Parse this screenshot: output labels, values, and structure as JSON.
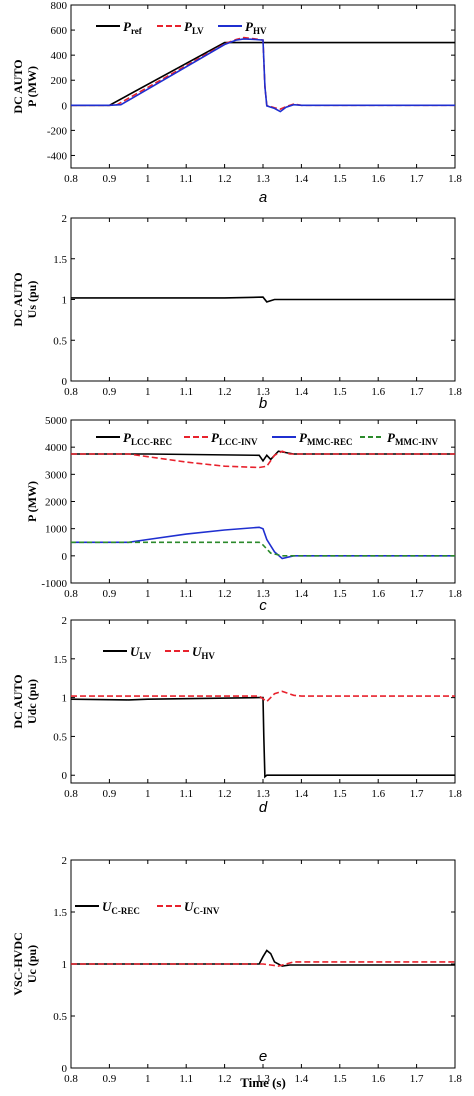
{
  "colors": {
    "black": "#000000",
    "red": "#e8222d",
    "blue": "#1f2fd0",
    "green": "#2b8a2b"
  },
  "chart_data": [
    {
      "type": "line",
      "panel_label": "a",
      "ylabel_lines": [
        "DC AUTO",
        "P (MW)"
      ],
      "xlim": [
        0.8,
        1.8
      ],
      "ylim": [
        -500,
        800
      ],
      "xticks": [
        "0.8",
        "0.9",
        "1",
        "1.1",
        "1.2",
        "1.3",
        "1.4",
        "1.5",
        "1.6",
        "1.7",
        "1.8"
      ],
      "yticks": [
        "-400",
        "-200",
        "0",
        "200",
        "400",
        "600",
        "800"
      ],
      "legend_position": "top-left",
      "series": [
        {
          "name": "P",
          "sub": "ref",
          "color": "#000000",
          "dash": "",
          "x": [
            0.8,
            0.9,
            1.2,
            1.8
          ],
          "y": [
            0,
            0,
            500,
            500
          ]
        },
        {
          "name": "P",
          "sub": "LV",
          "color": "#e8222d",
          "dash": "6,3",
          "x": [
            0.8,
            0.9,
            0.92,
            1.2,
            1.23,
            1.25,
            1.28,
            1.3,
            1.305,
            1.31,
            1.33,
            1.345,
            1.36,
            1.38,
            1.4,
            1.8
          ],
          "y": [
            0,
            0,
            5,
            490,
            525,
            540,
            530,
            520,
            150,
            0,
            -20,
            -30,
            -10,
            10,
            0,
            0
          ]
        },
        {
          "name": "P",
          "sub": "HV",
          "color": "#1f2fd0",
          "dash": "",
          "x": [
            0.8,
            0.9,
            0.93,
            1.2,
            1.23,
            1.25,
            1.28,
            1.3,
            1.305,
            1.31,
            1.33,
            1.345,
            1.36,
            1.38,
            1.4,
            1.8
          ],
          "y": [
            0,
            0,
            5,
            485,
            520,
            530,
            525,
            520,
            150,
            -5,
            -25,
            -50,
            -15,
            5,
            0,
            0
          ]
        }
      ]
    },
    {
      "type": "line",
      "panel_label": "b",
      "ylabel_lines": [
        "DC AUTO",
        "Us (pu)"
      ],
      "xlim": [
        0.8,
        1.8
      ],
      "ylim": [
        0,
        2
      ],
      "xticks": [
        "0.8",
        "0.9",
        "1",
        "1.1",
        "1.2",
        "1.3",
        "1.4",
        "1.5",
        "1.6",
        "1.7",
        "1.8"
      ],
      "yticks": [
        "0",
        "0.5",
        "1",
        "1.5",
        "2"
      ],
      "series": [
        {
          "name": "",
          "color": "#000000",
          "dash": "",
          "x": [
            0.8,
            1.0,
            1.2,
            1.3,
            1.31,
            1.33,
            1.35,
            1.4,
            1.8
          ],
          "y": [
            1.02,
            1.02,
            1.02,
            1.03,
            0.97,
            1.0,
            1.0,
            1.0,
            1.0
          ]
        }
      ]
    },
    {
      "type": "line",
      "panel_label": "c",
      "ylabel_lines": [
        "",
        "P (MW)"
      ],
      "xlim": [
        0.8,
        1.8
      ],
      "ylim": [
        -1000,
        5000
      ],
      "xticks": [
        "0.8",
        "0.9",
        "1",
        "1.1",
        "1.2",
        "1.3",
        "1.4",
        "1.5",
        "1.6",
        "1.7",
        "1.8"
      ],
      "yticks": [
        "-1000",
        "0",
        "1000",
        "2000",
        "3000",
        "4000",
        "5000"
      ],
      "legend_position": "top",
      "series": [
        {
          "name": "P",
          "sub": "LCC-REC",
          "color": "#000000",
          "dash": "",
          "x": [
            0.8,
            1.0,
            1.29,
            1.3,
            1.31,
            1.32,
            1.34,
            1.36,
            1.38,
            1.8
          ],
          "y": [
            3750,
            3750,
            3700,
            3500,
            3700,
            3550,
            3850,
            3800,
            3750,
            3750
          ]
        },
        {
          "name": "P",
          "sub": "LCC-INV",
          "color": "#e8222d",
          "dash": "6,3",
          "x": [
            0.8,
            0.95,
            1.0,
            1.1,
            1.2,
            1.29,
            1.31,
            1.33,
            1.35,
            1.37,
            1.4,
            1.8
          ],
          "y": [
            3750,
            3750,
            3650,
            3450,
            3300,
            3250,
            3300,
            3700,
            3850,
            3750,
            3750,
            3750
          ]
        },
        {
          "name": "P",
          "sub": "MMC-REC",
          "color": "#1f2fd0",
          "dash": "",
          "x": [
            0.8,
            0.95,
            1.0,
            1.1,
            1.2,
            1.29,
            1.3,
            1.31,
            1.33,
            1.35,
            1.38,
            1.4,
            1.8
          ],
          "y": [
            500,
            500,
            600,
            800,
            950,
            1050,
            1000,
            600,
            150,
            -100,
            0,
            0,
            0
          ]
        },
        {
          "name": "P",
          "sub": "MMC-INV",
          "color": "#2b8a2b",
          "dash": "5,3",
          "x": [
            0.8,
            1.29,
            1.3,
            1.32,
            1.35,
            1.8
          ],
          "y": [
            500,
            500,
            400,
            100,
            0,
            0
          ]
        }
      ]
    },
    {
      "type": "line",
      "panel_label": "d",
      "ylabel_lines": [
        "DC AUTO",
        "Udc (pu)"
      ],
      "xlim": [
        0.8,
        1.8
      ],
      "ylim": [
        -0.1,
        2
      ],
      "xticks": [
        "0.8",
        "0.9",
        "1",
        "1.1",
        "1.2",
        "1.3",
        "1.4",
        "1.5",
        "1.6",
        "1.7",
        "1.8"
      ],
      "yticks": [
        "0",
        "0.5",
        "1",
        "1.5",
        "2"
      ],
      "legend_position": "top-left",
      "series": [
        {
          "name": "U",
          "sub": "LV",
          "color": "#000000",
          "dash": "",
          "x": [
            0.8,
            0.95,
            1.0,
            1.29,
            1.3,
            1.302,
            1.305,
            1.31,
            1.8
          ],
          "y": [
            0.98,
            0.97,
            0.98,
            1.0,
            1.0,
            0.5,
            -0.02,
            0.0,
            0.0
          ]
        },
        {
          "name": "U",
          "sub": "HV",
          "color": "#e8222d",
          "dash": "6,3",
          "x": [
            0.8,
            1.29,
            1.31,
            1.33,
            1.35,
            1.38,
            1.4,
            1.8
          ],
          "y": [
            1.02,
            1.02,
            0.95,
            1.05,
            1.08,
            1.03,
            1.02,
            1.02
          ]
        }
      ]
    },
    {
      "type": "line",
      "panel_label": "e",
      "ylabel_lines": [
        "VSC-HVDC",
        "Uc (pu)"
      ],
      "xlabel": "Time (s)",
      "xlim": [
        0.8,
        1.8
      ],
      "ylim": [
        0,
        2
      ],
      "xticks": [
        "0.8",
        "0.9",
        "1",
        "1.1",
        "1.2",
        "1.3",
        "1.4",
        "1.5",
        "1.6",
        "1.7",
        "1.8"
      ],
      "yticks": [
        "0",
        "0.5",
        "1",
        "1.5",
        "2"
      ],
      "legend_position": "top-left",
      "series": [
        {
          "name": "U",
          "sub": "C-REC",
          "color": "#000000",
          "dash": "",
          "x": [
            0.8,
            1.29,
            1.3,
            1.31,
            1.32,
            1.33,
            1.35,
            1.37,
            1.4,
            1.8
          ],
          "y": [
            1.0,
            1.0,
            1.07,
            1.13,
            1.1,
            1.02,
            0.98,
            0.99,
            0.99,
            0.99
          ]
        },
        {
          "name": "U",
          "sub": "C-INV",
          "color": "#e8222d",
          "dash": "6,3",
          "x": [
            0.8,
            1.3,
            1.32,
            1.34,
            1.36,
            1.38,
            1.4,
            1.8
          ],
          "y": [
            1.0,
            1.0,
            0.99,
            0.98,
            1.0,
            1.02,
            1.02,
            1.02
          ]
        }
      ]
    }
  ]
}
